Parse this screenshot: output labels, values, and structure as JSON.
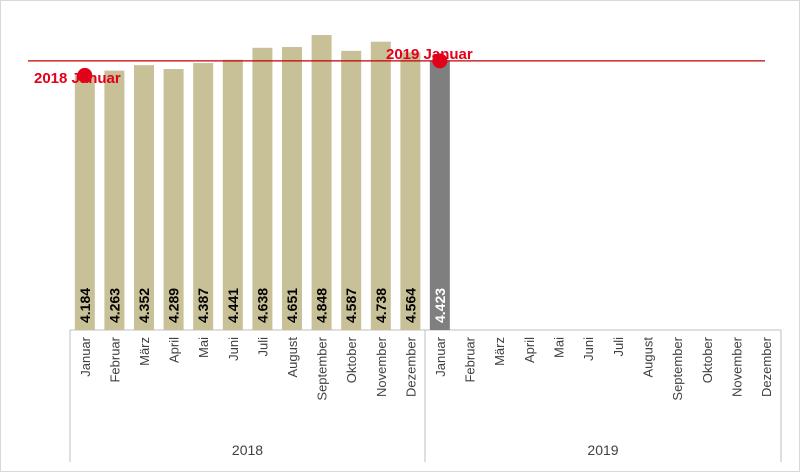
{
  "chart_data": {
    "type": "bar",
    "title": "",
    "xlabel": "",
    "ylabel": "",
    "grid": false,
    "groups": [
      {
        "year": "2018",
        "months": [
          "Januar",
          "Februar",
          "März",
          "April",
          "Mai",
          "Juni",
          "Juli",
          "August",
          "September",
          "Oktober",
          "November",
          "Dezember"
        ],
        "values": [
          4184,
          4263,
          4352,
          4289,
          4387,
          4441,
          4638,
          4651,
          4848,
          4587,
          4738,
          4564
        ],
        "labels": [
          "4.184",
          "4.263",
          "4.352",
          "4.289",
          "4.387",
          "4.441",
          "4.638",
          "4.651",
          "4.848",
          "4.587",
          "4.738",
          "4.564"
        ],
        "color": "#c8c097"
      },
      {
        "year": "2019",
        "months": [
          "Januar",
          "Februar",
          "März",
          "April",
          "Mai",
          "Juni",
          "Juli",
          "August",
          "September",
          "Oktober",
          "November",
          "Dezember"
        ],
        "values": [
          4423
        ],
        "labels": [
          "4.423"
        ],
        "color": "#7f7f7f"
      }
    ],
    "annotations": [
      {
        "text": "2018 Januar",
        "group": 0,
        "index": 0,
        "value": 4184
      },
      {
        "text": "2019 Januar",
        "group": 1,
        "index": 0,
        "value": 4423
      }
    ],
    "reference_line_value": 4423,
    "colors": {
      "marker": "#e2001a",
      "line": "#c00000",
      "label_dark": "#000000",
      "label_light": "#ffffff"
    }
  }
}
